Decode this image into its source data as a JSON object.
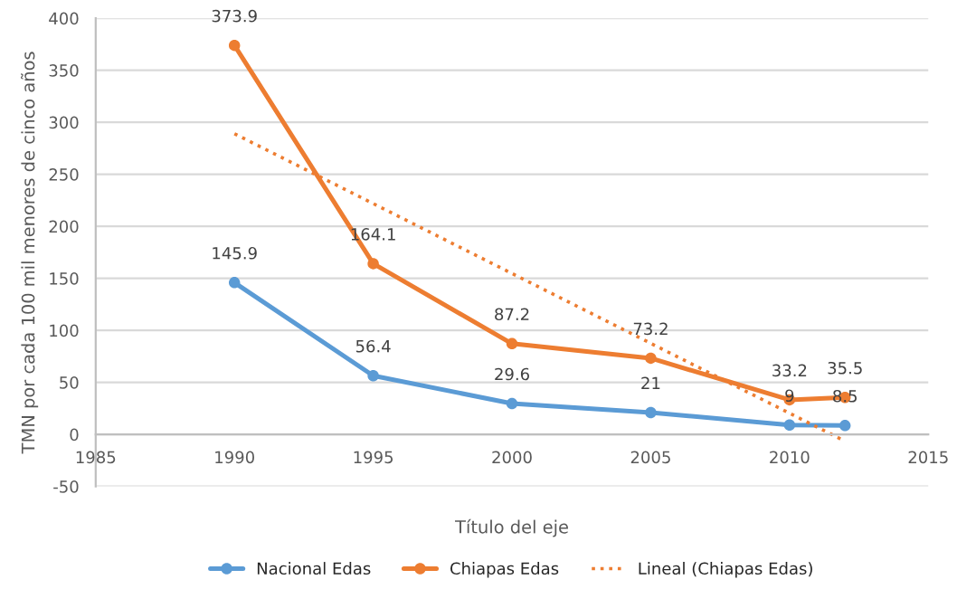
{
  "chart_data": {
    "type": "line",
    "xlabel": "Título del eje",
    "ylabel": "TMN por cada 100 mil menores de cinco años",
    "xlim": [
      1985,
      2015
    ],
    "xticks": [
      1985,
      1990,
      1995,
      2000,
      2005,
      2010,
      2015
    ],
    "ylim": [
      -50,
      400
    ],
    "yticks": [
      -50,
      0,
      50,
      100,
      150,
      200,
      250,
      300,
      350,
      400
    ],
    "grid": "y",
    "legend": "bottom",
    "marker": "circle",
    "series": [
      {
        "name": "Nacional Edas",
        "color": "#5b9bd5",
        "x": [
          1990,
          1995,
          2000,
          2005,
          2010,
          2012
        ],
        "values": [
          145.9,
          56.4,
          29.6,
          21,
          9,
          8.5
        ],
        "value_labels": [
          "145.9",
          "56.4",
          "29.6",
          "21",
          "9",
          "8.5"
        ]
      },
      {
        "name": "Chiapas Edas",
        "color": "#ed7d31",
        "x": [
          1990,
          1995,
          2000,
          2005,
          2010,
          2012
        ],
        "values": [
          373.9,
          164.1,
          87.2,
          73.2,
          33.2,
          35.5
        ],
        "value_labels": [
          "373.9",
          "164.1",
          "87.2",
          "73.2",
          "33.2",
          "35.5"
        ]
      },
      {
        "name": "Lineal (Chiapas Edas)",
        "color": "#ed7d31",
        "x": [
          1990,
          2012
        ],
        "values": [
          289.0,
          -6.5
        ],
        "marker": "none",
        "line_style": "dotted"
      }
    ]
  }
}
